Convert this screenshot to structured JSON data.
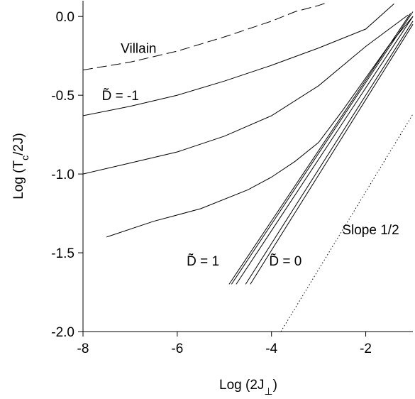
{
  "chart_data": {
    "type": "line",
    "title": "",
    "xlabel": "Log (2J",
    "xlabel_sub": "⊥",
    "xlabel_close": ")",
    "ylabel": "Log (T",
    "ylabel_sub": "c",
    "ylabel_close": "/2J)",
    "xlim": [
      -8,
      -1
    ],
    "ylim": [
      -2.0,
      0.1
    ],
    "x_ticks": [
      -8,
      -6,
      -4,
      -2
    ],
    "x_tick_labels": [
      "-8",
      "-6",
      "-4",
      "-2"
    ],
    "y_ticks": [
      -2.0,
      -1.5,
      -1.0,
      -0.5,
      0.0
    ],
    "y_tick_labels": [
      "-2.0",
      "-1.5",
      "-1.0",
      "-0.5",
      "0.0"
    ],
    "grid": false,
    "series": [
      {
        "style": "dashed",
        "points": [
          [
            -8,
            -0.34
          ],
          [
            -7,
            -0.29
          ],
          [
            -6,
            -0.22
          ],
          [
            -5,
            -0.13
          ],
          [
            -4,
            -0.03
          ],
          [
            -3.5,
            0.03
          ],
          [
            -3,
            0.07
          ],
          [
            -2.8,
            0.09
          ]
        ]
      },
      {
        "style": "solid",
        "points": [
          [
            -8,
            -0.63
          ],
          [
            -7,
            -0.57
          ],
          [
            -6,
            -0.5
          ],
          [
            -5,
            -0.41
          ],
          [
            -4,
            -0.31
          ],
          [
            -3,
            -0.2
          ],
          [
            -2,
            -0.08
          ],
          [
            -1.4,
            0.08
          ]
        ]
      },
      {
        "style": "solid",
        "points": [
          [
            -8,
            -1.0
          ],
          [
            -7,
            -0.93
          ],
          [
            -6,
            -0.86
          ],
          [
            -5,
            -0.76
          ],
          [
            -4,
            -0.63
          ],
          [
            -3,
            -0.44
          ],
          [
            -2,
            -0.19
          ],
          [
            -1.1,
            0.01
          ]
        ]
      },
      {
        "style": "solid",
        "points": [
          [
            -7.5,
            -1.4
          ],
          [
            -6.5,
            -1.3
          ],
          [
            -5.5,
            -1.22
          ],
          [
            -4.5,
            -1.1
          ],
          [
            -4,
            -1.02
          ],
          [
            -3.5,
            -0.92
          ],
          [
            -3,
            -0.8
          ],
          [
            -2.5,
            -0.6
          ],
          [
            -2,
            -0.39
          ],
          [
            -1.5,
            -0.18
          ],
          [
            -1,
            0.0
          ]
        ]
      },
      {
        "style": "solid",
        "points": [
          [
            -4.9,
            -1.7
          ],
          [
            -1.05,
            0.02
          ]
        ]
      },
      {
        "style": "solid",
        "points": [
          [
            -4.85,
            -1.7
          ],
          [
            -1.0,
            0.03
          ]
        ]
      },
      {
        "style": "solid",
        "points": [
          [
            -4.75,
            -1.7
          ],
          [
            -1.0,
            0.0
          ]
        ]
      },
      {
        "style": "solid",
        "points": [
          [
            -4.55,
            -1.7
          ],
          [
            -1.0,
            -0.03
          ]
        ]
      },
      {
        "style": "solid",
        "points": [
          [
            -4.45,
            -1.7
          ],
          [
            -1.0,
            -0.05
          ]
        ]
      },
      {
        "style": "dotted",
        "points": [
          [
            -3.8,
            -2.0
          ],
          [
            -1.0,
            -0.62
          ]
        ]
      }
    ],
    "annotations": [
      {
        "text": "Villain",
        "x": -7.2,
        "y": -0.2
      },
      {
        "text": "D̃ = -1",
        "x": -7.6,
        "y": -0.5
      },
      {
        "text": "D̃ = 1",
        "x": -5.8,
        "y": -1.55
      },
      {
        "text": "D̃ = 0",
        "x": -4.05,
        "y": -1.55
      },
      {
        "text": "Slope 1/2",
        "x": -2.5,
        "y": -1.35
      }
    ]
  }
}
